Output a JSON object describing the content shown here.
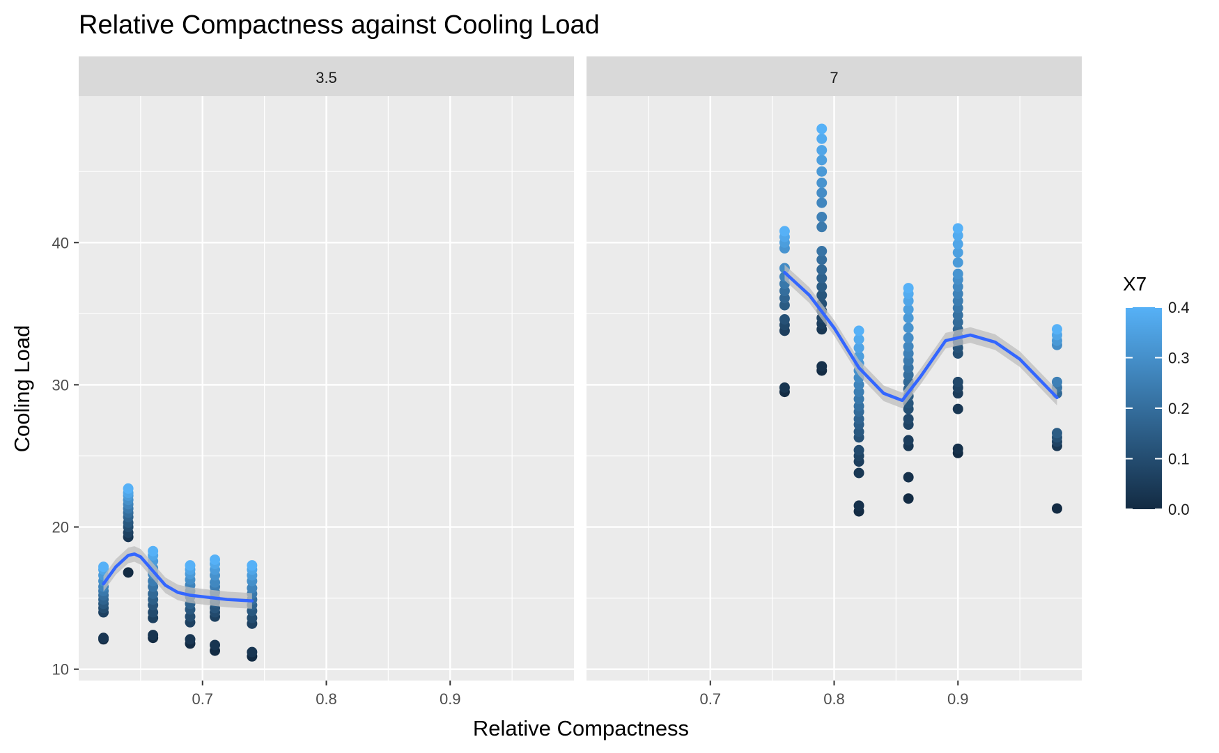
{
  "chart_data": {
    "type": "scatter",
    "title": "Relative Compactness against Cooling Load",
    "xlabel": "Relative Compactness",
    "ylabel": "Cooling Load",
    "xlim": [
      0.6,
      1.0
    ],
    "ylim": [
      9.2,
      50.3
    ],
    "x_ticks": [
      0.7,
      0.8,
      0.9
    ],
    "x_tick_labels": [
      "0.7",
      "0.8",
      "0.9"
    ],
    "y_ticks": [
      10,
      20,
      30,
      40
    ],
    "y_tick_labels": [
      "10",
      "20",
      "30",
      "40"
    ],
    "grid": true,
    "facets": [
      {
        "label": "3.5",
        "points": [
          {
            "x": 0.62,
            "values": [
              12.1,
              12.2,
              14.0,
              14.3,
              14.6,
              14.9,
              15.2,
              15.5,
              15.8,
              16.2,
              16.6,
              17.0,
              17.2
            ]
          },
          {
            "x": 0.64,
            "values": [
              16.8,
              19.3,
              19.6,
              20.0,
              20.3,
              20.7,
              21.0,
              21.3,
              21.6,
              21.9,
              22.2,
              22.4,
              22.7
            ]
          },
          {
            "x": 0.66,
            "values": [
              12.2,
              12.4,
              13.6,
              14.0,
              14.5,
              14.9,
              15.3,
              15.8,
              16.2,
              16.7,
              17.1,
              17.6,
              18.0,
              18.3
            ]
          },
          {
            "x": 0.69,
            "values": [
              11.8,
              12.1,
              13.3,
              13.7,
              14.2,
              14.6,
              15.1,
              15.5,
              15.9,
              16.3,
              16.7,
              17.0,
              17.3
            ]
          },
          {
            "x": 0.71,
            "values": [
              11.3,
              11.7,
              13.7,
              14.0,
              14.3,
              14.7,
              15.0,
              15.4,
              15.8,
              16.1,
              16.6,
              17.0,
              17.4,
              17.7
            ]
          },
          {
            "x": 0.74,
            "values": [
              10.9,
              11.2,
              13.2,
              13.6,
              14.1,
              14.5,
              14.9,
              15.3,
              15.7,
              16.2,
              16.6,
              17.0,
              17.3
            ]
          }
        ],
        "smooth": {
          "x": [
            0.62,
            0.63,
            0.64,
            0.645,
            0.65,
            0.66,
            0.67,
            0.68,
            0.69,
            0.7,
            0.71,
            0.72,
            0.73,
            0.74
          ],
          "y": [
            16.0,
            17.2,
            18.0,
            18.1,
            17.9,
            16.9,
            15.9,
            15.4,
            15.2,
            15.1,
            15.0,
            14.9,
            14.85,
            14.8
          ]
        }
      },
      {
        "label": "7",
        "points": [
          {
            "x": 0.76,
            "values": [
              29.5,
              29.8,
              33.8,
              34.2,
              34.6,
              35.6,
              36.1,
              36.6,
              37.1,
              37.6,
              38.2,
              39.6,
              40.0,
              40.4,
              40.8
            ]
          },
          {
            "x": 0.79,
            "values": [
              31.0,
              31.3,
              33.9,
              34.3,
              34.7,
              35.2,
              35.7,
              36.3,
              36.9,
              37.5,
              38.1,
              38.8,
              39.4,
              41.1,
              41.8,
              42.8,
              43.5,
              44.2,
              45.0,
              45.8,
              46.5,
              47.3,
              48.0
            ]
          },
          {
            "x": 0.82,
            "values": [
              21.1,
              21.5,
              23.8,
              24.6,
              25.0,
              25.4,
              26.3,
              26.7,
              27.2,
              27.6,
              28.1,
              28.5,
              29.0,
              29.5,
              30.0,
              30.5,
              31.0,
              31.5,
              32.0,
              32.6,
              33.2,
              33.8
            ]
          },
          {
            "x": 0.86,
            "values": [
              22.0,
              23.5,
              25.7,
              26.1,
              27.2,
              27.6,
              28.3,
              28.7,
              29.2,
              29.7,
              30.2,
              30.7,
              31.2,
              31.7,
              32.2,
              32.7,
              33.3,
              34.0,
              34.7,
              35.3,
              35.9,
              36.4,
              36.8
            ]
          },
          {
            "x": 0.9,
            "values": [
              25.2,
              25.5,
              28.3,
              29.4,
              29.8,
              30.2,
              32.2,
              32.6,
              33.0,
              33.4,
              33.9,
              34.4,
              34.9,
              35.4,
              35.9,
              36.4,
              36.9,
              37.4,
              37.8,
              38.6,
              39.3,
              39.9,
              40.5,
              41.0
            ]
          },
          {
            "x": 0.98,
            "values": [
              21.3,
              25.7,
              26.0,
              26.3,
              26.6,
              29.4,
              29.8,
              30.2,
              32.8,
              33.1,
              33.5,
              33.9
            ]
          }
        ],
        "smooth": {
          "x": [
            0.76,
            0.78,
            0.8,
            0.82,
            0.84,
            0.855,
            0.87,
            0.89,
            0.91,
            0.93,
            0.95,
            0.98
          ],
          "y": [
            37.9,
            36.3,
            34.0,
            31.2,
            29.4,
            28.9,
            30.6,
            33.1,
            33.5,
            33.0,
            31.8,
            29.1
          ]
        }
      }
    ],
    "legend": {
      "title": "X7",
      "position": "right",
      "range": [
        0.0,
        0.4
      ],
      "labels": [
        "0.4",
        "0.3",
        "0.2",
        "0.1",
        "0.0"
      ],
      "low_color": "#132b43",
      "high_color": "#56b1f7"
    },
    "colors": {
      "panel_bg": "#ebebeb",
      "grid": "#ffffff",
      "strip_bg": "#d9d9d9",
      "smooth_line": "#3366ff",
      "ribbon": "#bdbdbd"
    }
  }
}
